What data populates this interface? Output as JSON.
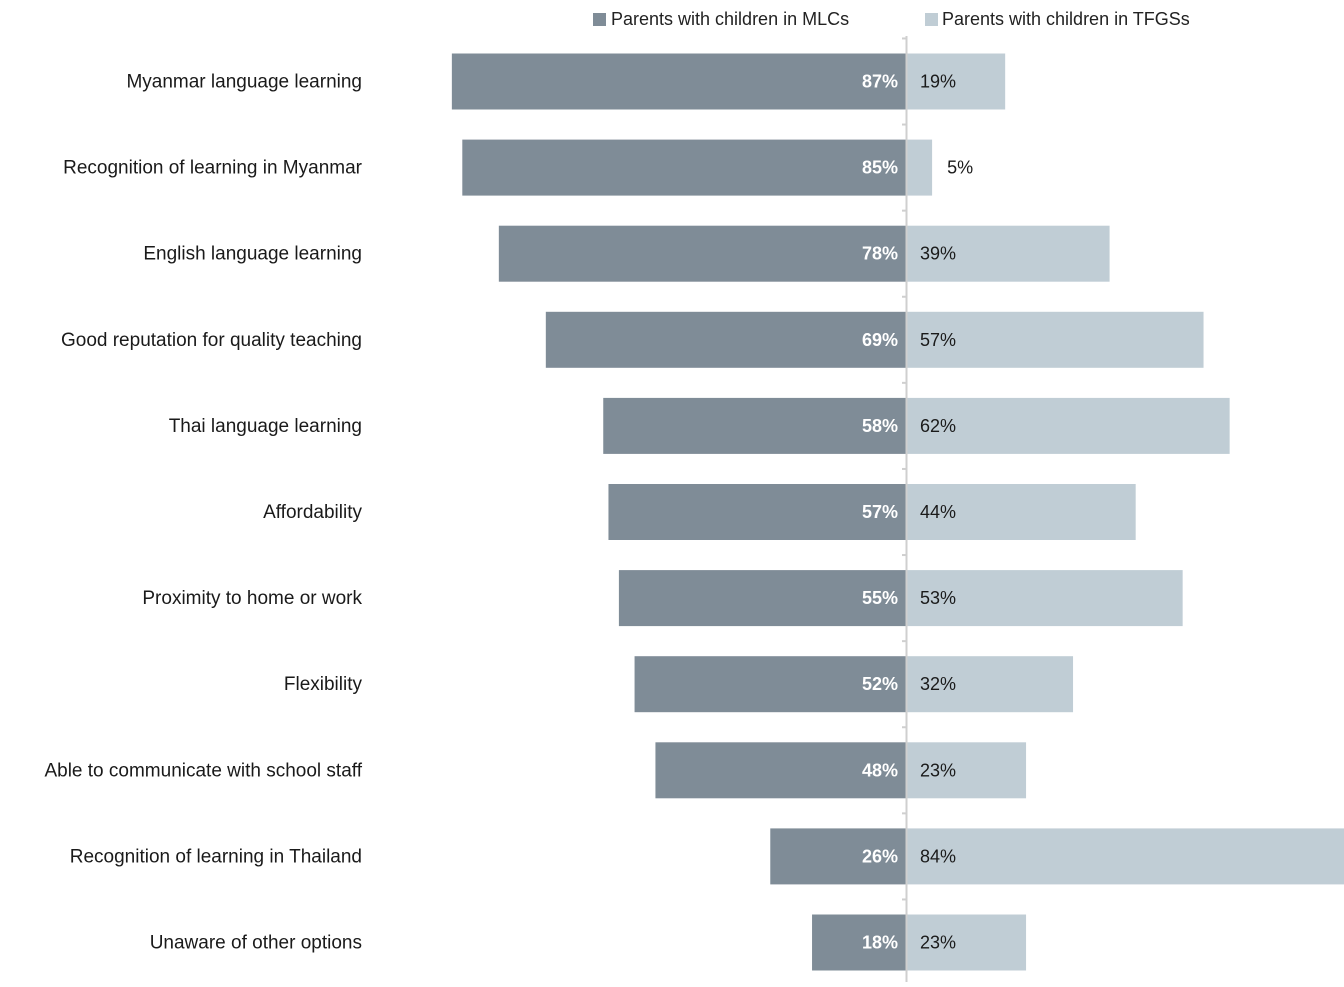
{
  "chart_data": {
    "type": "bar",
    "orientation": "horizontal-diverging",
    "categories": [
      "Myanmar language learning",
      "Recognition of learning in Myanmar",
      "English language learning",
      "Good reputation for quality teaching",
      "Thai language learning",
      "Affordability",
      "Proximity to home or work",
      "Flexibility",
      "Able to communicate with school staff",
      "Recognition of learning in Thailand",
      "Unaware of other options"
    ],
    "series": [
      {
        "name": "Parents with children in MLCs",
        "color": "#7f8c97",
        "values": [
          87,
          85,
          78,
          69,
          58,
          57,
          55,
          52,
          48,
          26,
          18
        ],
        "labels": [
          "87%",
          "85%",
          "78%",
          "69%",
          "58%",
          "57%",
          "55%",
          "52%",
          "48%",
          "26%",
          "18%"
        ]
      },
      {
        "name": "Parents with children in TFGSs",
        "color": "#c0cdd5",
        "values": [
          19,
          5,
          39,
          57,
          62,
          44,
          53,
          32,
          23,
          84,
          23
        ],
        "labels": [
          "19%",
          "5%",
          "39%",
          "57%",
          "62%",
          "44%",
          "53%",
          "32%",
          "23%",
          "84%",
          "23%"
        ]
      }
    ],
    "unit": "%",
    "legend_position": "top",
    "grid": false
  }
}
